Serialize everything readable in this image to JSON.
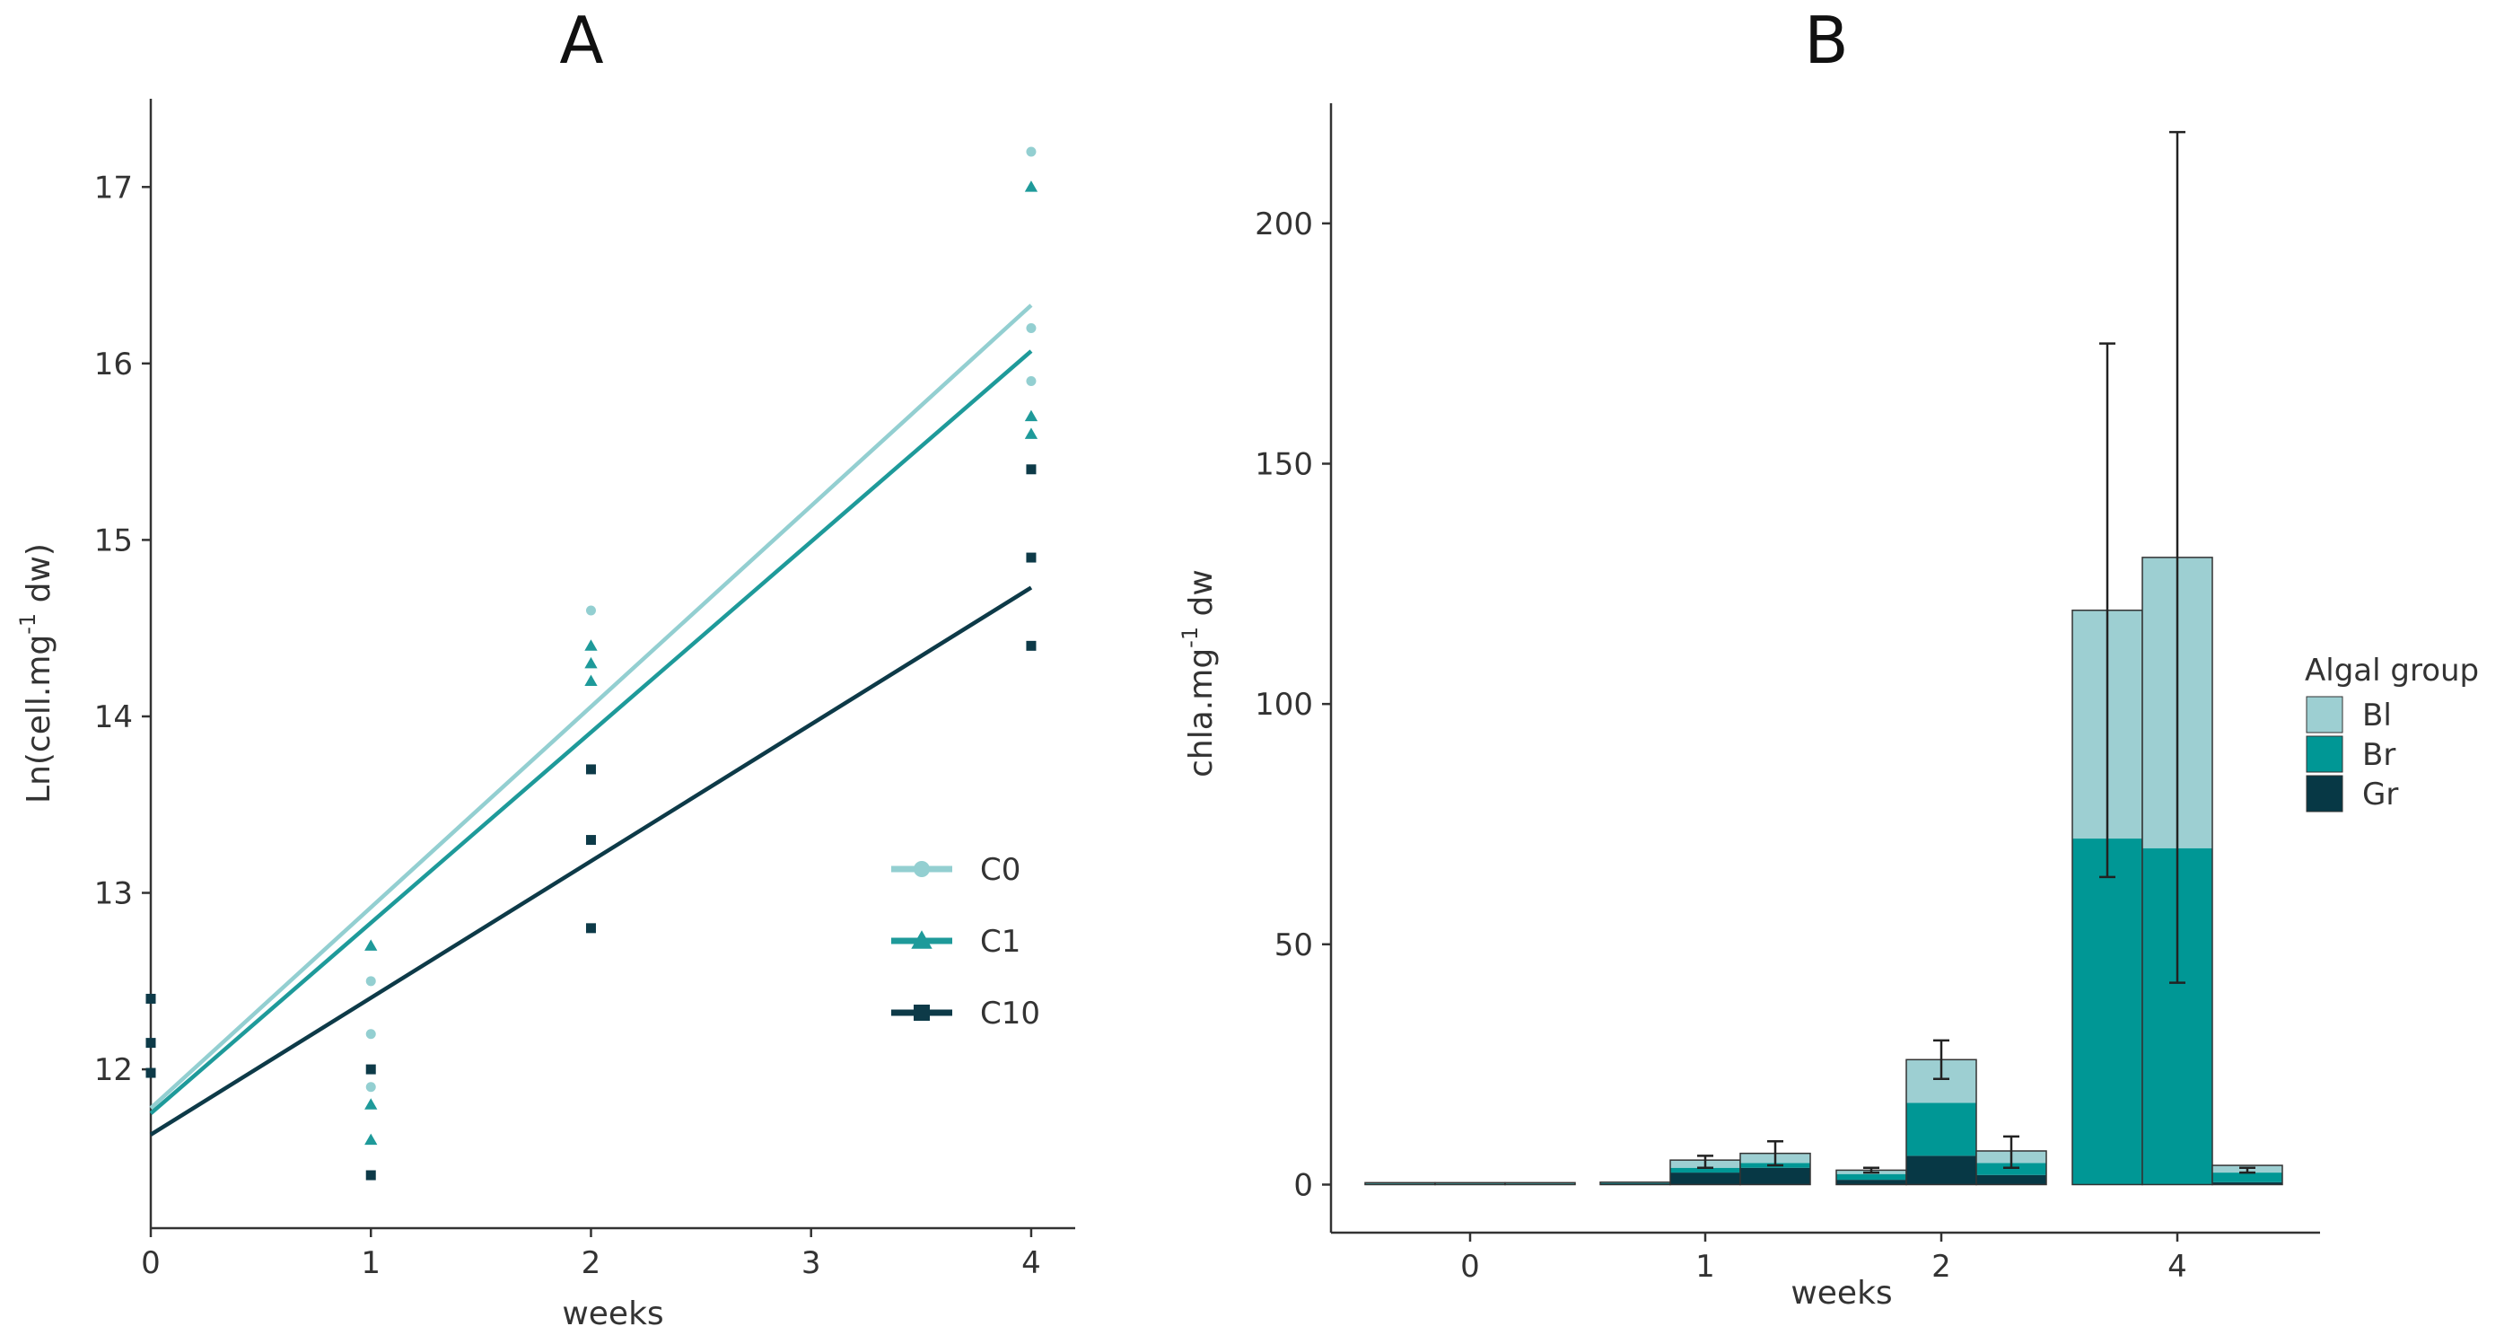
{
  "colors": {
    "C0": "#93CFD1",
    "C1": "#1E9A9A",
    "C10": "#0D3A48",
    "Bl": "#9DCFD2",
    "Br": "#009795",
    "Gr": "#073845",
    "bar_border": "#333333",
    "axis": "#333333"
  },
  "chart_data": [
    {
      "type": "scatter",
      "panel_label": "A",
      "xlabel": "weeks",
      "ylabel_main": "Ln(cell.mg",
      "ylabel_sup": "-1",
      "ylabel_tail": " dw)",
      "xlim": [
        0,
        4.2
      ],
      "ylim": [
        11.1,
        17.5
      ],
      "xticks": [
        0,
        1,
        2,
        3,
        4
      ],
      "yticks": [
        12,
        13,
        14,
        15,
        16,
        17
      ],
      "legend_position": "right",
      "series": [
        {
          "name": "C0",
          "marker": "circle",
          "points": [
            [
              1,
              12.5
            ],
            [
              1,
              12.2
            ],
            [
              1,
              11.9
            ],
            [
              2,
              14.6
            ],
            [
              4,
              17.2
            ],
            [
              4,
              16.2
            ],
            [
              4,
              15.9
            ]
          ],
          "fit_line": [
            [
              0,
              11.78
            ],
            [
              4,
              16.33
            ]
          ]
        },
        {
          "name": "C1",
          "marker": "triangle",
          "points": [
            [
              1,
              12.7
            ],
            [
              1,
              11.8
            ],
            [
              1,
              11.6
            ],
            [
              2,
              14.4
            ],
            [
              2,
              14.3
            ],
            [
              2,
              14.2
            ],
            [
              4,
              17.0
            ],
            [
              4,
              15.7
            ],
            [
              4,
              15.6
            ]
          ],
          "fit_line": [
            [
              0,
              11.75
            ],
            [
              4,
              16.07
            ]
          ]
        },
        {
          "name": "C10",
          "marker": "square",
          "points": [
            [
              0,
              12.4
            ],
            [
              0,
              12.15
            ],
            [
              0,
              11.98
            ],
            [
              1,
              12.0
            ],
            [
              1,
              11.4
            ],
            [
              2,
              13.7
            ],
            [
              2,
              13.3
            ],
            [
              2,
              12.8
            ],
            [
              4,
              15.4
            ],
            [
              4,
              14.9
            ],
            [
              4,
              14.4
            ]
          ],
          "fit_line": [
            [
              0,
              11.63
            ],
            [
              4,
              14.73
            ]
          ]
        }
      ]
    },
    {
      "type": "bar",
      "panel_label": "B",
      "stacked": true,
      "xlabel": "weeks",
      "ylabel_main": "chla.mg",
      "ylabel_sup": "-1",
      "ylabel_tail": " dw",
      "ylim": [
        -10,
        225
      ],
      "yticks": [
        0,
        50,
        100,
        150,
        200
      ],
      "categories": [
        "0",
        "1",
        "2",
        "4"
      ],
      "legend_title": "Algal group",
      "legend_position": "right",
      "legend_items": [
        "Bl",
        "Br",
        "Gr"
      ],
      "groups": [
        {
          "week": "0",
          "bars": [
            {
              "Gr": 0.2,
              "Br": 0.1,
              "Bl": 0.1,
              "err": null
            },
            {
              "Gr": 0.2,
              "Br": 0.1,
              "Bl": 0.1,
              "err": null
            },
            {
              "Gr": 0.2,
              "Br": 0.1,
              "Bl": 0.1,
              "err": null
            }
          ]
        },
        {
          "week": "1",
          "bars": [
            {
              "Gr": 0.3,
              "Br": 0.1,
              "Bl": 0.1,
              "err": null
            },
            {
              "Gr": 2.5,
              "Br": 1.0,
              "Bl": 1.6,
              "err": [
                3.5,
                6.0
              ]
            },
            {
              "Gr": 3.5,
              "Br": 1.0,
              "Bl": 2.0,
              "err": [
                4.0,
                9.0
              ]
            }
          ]
        },
        {
          "week": "2",
          "bars": [
            {
              "Gr": 1.0,
              "Br": 1.2,
              "Bl": 0.8,
              "err": [
                2.5,
                3.5
              ]
            },
            {
              "Gr": 6.0,
              "Br": 11.0,
              "Bl": 9.0,
              "err": [
                22.0,
                30.0
              ]
            },
            {
              "Gr": 2.0,
              "Br": 2.5,
              "Bl": 2.5,
              "err": [
                3.5,
                10.0
              ]
            }
          ]
        },
        {
          "week": "4",
          "bars": [
            {
              "Gr": 0.0,
              "Br": 72.0,
              "Bl": 47.5,
              "err": [
                64.0,
                175.0
              ]
            },
            {
              "Gr": 0.0,
              "Br": 70.0,
              "Bl": 60.5,
              "err": [
                42.0,
                219.0
              ]
            },
            {
              "Gr": 0.5,
              "Br": 2.0,
              "Bl": 1.5,
              "err": [
                2.5,
                3.5
              ]
            }
          ]
        }
      ]
    }
  ]
}
